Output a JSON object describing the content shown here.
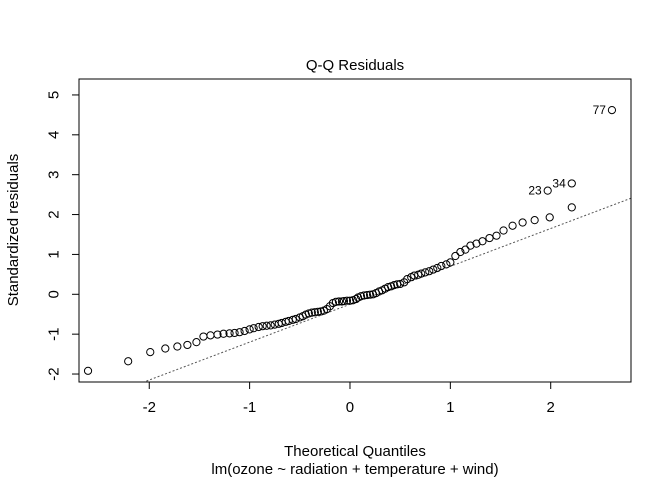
{
  "chart_data": {
    "type": "scatter",
    "title": "Q-Q Residuals",
    "xlabel": "Theoretical Quantiles",
    "ylabel": "Standardized residuals",
    "subtitle": "lm(ozone ~ radiation + temperature + wind)",
    "xlim": [
      -2.7,
      2.8
    ],
    "ylim": [
      -2.2,
      5.4
    ],
    "xticks": [
      -2,
      -1,
      0,
      1,
      2
    ],
    "yticks": [
      -2,
      -1,
      0,
      1,
      2,
      3,
      4,
      5
    ],
    "grid": false,
    "reference_line": {
      "style": "dotted",
      "slope": 0.95,
      "intercept": -0.25
    },
    "points": [
      [
        -2.61,
        -1.92
      ],
      [
        -2.21,
        -1.68
      ],
      [
        -1.99,
        -1.45
      ],
      [
        -1.84,
        -1.36
      ],
      [
        -1.72,
        -1.31
      ],
      [
        -1.62,
        -1.27
      ],
      [
        -1.53,
        -1.2
      ],
      [
        -1.46,
        -1.06
      ],
      [
        -1.39,
        -1.03
      ],
      [
        -1.32,
        -1.01
      ],
      [
        -1.26,
        -0.99
      ],
      [
        -1.2,
        -0.98
      ],
      [
        -1.15,
        -0.97
      ],
      [
        -1.1,
        -0.95
      ],
      [
        -1.05,
        -0.92
      ],
      [
        -1.0,
        -0.88
      ],
      [
        -0.96,
        -0.85
      ],
      [
        -0.91,
        -0.82
      ],
      [
        -0.87,
        -0.8
      ],
      [
        -0.83,
        -0.79
      ],
      [
        -0.79,
        -0.78
      ],
      [
        -0.75,
        -0.76
      ],
      [
        -0.71,
        -0.74
      ],
      [
        -0.68,
        -0.72
      ],
      [
        -0.64,
        -0.69
      ],
      [
        -0.61,
        -0.67
      ],
      [
        -0.57,
        -0.64
      ],
      [
        -0.54,
        -0.62
      ],
      [
        -0.5,
        -0.58
      ],
      [
        -0.47,
        -0.55
      ],
      [
        -0.44,
        -0.51
      ],
      [
        -0.41,
        -0.48
      ],
      [
        -0.38,
        -0.46
      ],
      [
        -0.35,
        -0.45
      ],
      [
        -0.32,
        -0.44
      ],
      [
        -0.29,
        -0.43
      ],
      [
        -0.26,
        -0.41
      ],
      [
        -0.23,
        -0.37
      ],
      [
        -0.2,
        -0.3
      ],
      [
        -0.17,
        -0.22
      ],
      [
        -0.14,
        -0.19
      ],
      [
        -0.11,
        -0.18
      ],
      [
        -0.08,
        -0.18
      ],
      [
        -0.06,
        -0.17
      ],
      [
        -0.03,
        -0.16
      ],
      [
        0.0,
        -0.16
      ],
      [
        0.03,
        -0.15
      ],
      [
        0.06,
        -0.12
      ],
      [
        0.08,
        -0.08
      ],
      [
        0.11,
        -0.05
      ],
      [
        0.14,
        -0.03
      ],
      [
        0.17,
        -0.02
      ],
      [
        0.2,
        -0.01
      ],
      [
        0.23,
        0.0
      ],
      [
        0.26,
        0.03
      ],
      [
        0.29,
        0.07
      ],
      [
        0.32,
        0.1
      ],
      [
        0.35,
        0.14
      ],
      [
        0.38,
        0.18
      ],
      [
        0.41,
        0.2
      ],
      [
        0.44,
        0.23
      ],
      [
        0.47,
        0.25
      ],
      [
        0.5,
        0.26
      ],
      [
        0.54,
        0.3
      ],
      [
        0.57,
        0.38
      ],
      [
        0.61,
        0.43
      ],
      [
        0.64,
        0.47
      ],
      [
        0.68,
        0.49
      ],
      [
        0.71,
        0.52
      ],
      [
        0.75,
        0.55
      ],
      [
        0.79,
        0.58
      ],
      [
        0.83,
        0.62
      ],
      [
        0.87,
        0.66
      ],
      [
        0.91,
        0.71
      ],
      [
        0.96,
        0.75
      ],
      [
        1.0,
        0.8
      ],
      [
        1.05,
        0.96
      ],
      [
        1.1,
        1.06
      ],
      [
        1.15,
        1.12
      ],
      [
        1.2,
        1.22
      ],
      [
        1.26,
        1.27
      ],
      [
        1.32,
        1.33
      ],
      [
        1.39,
        1.41
      ],
      [
        1.46,
        1.47
      ],
      [
        1.53,
        1.6
      ],
      [
        1.62,
        1.72
      ],
      [
        1.72,
        1.8
      ],
      [
        1.84,
        1.86
      ],
      [
        1.99,
        1.93
      ],
      [
        2.21,
        2.18
      ]
    ],
    "labeled_points": [
      {
        "label": "23",
        "x": 1.97,
        "y": 2.6
      },
      {
        "label": "34",
        "x": 2.21,
        "y": 2.78
      },
      {
        "label": "77",
        "x": 2.61,
        "y": 4.62
      }
    ]
  }
}
